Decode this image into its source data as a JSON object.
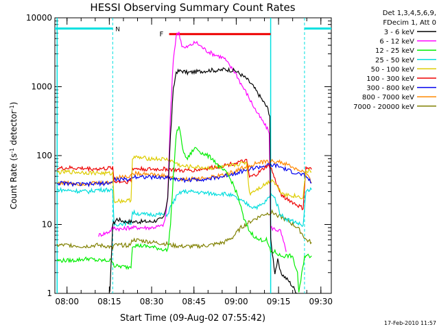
{
  "chart_data": {
    "type": "line",
    "title": "HESSI Observing Summary Count Rates",
    "xlabel": "Start Time (09-Aug-02 07:55:42)",
    "ylabel_parts": [
      "Count Rate (s",
      "-1",
      " detector",
      "-1",
      ")"
    ],
    "ylabel": "Count Rate (s-1 detector-1)",
    "y_scale": "log",
    "ylim": [
      1,
      10000
    ],
    "y_ticks": [
      1,
      10,
      100,
      1000,
      10000
    ],
    "y_tick_labels": [
      "1",
      "10",
      "100",
      "1000",
      "10000"
    ],
    "x_unit": "minutes after 07:55:42",
    "xlim": [
      0,
      98
    ],
    "x_tick_positions": [
      4.3,
      19.3,
      34.3,
      49.3,
      64.3,
      79.3,
      94.3
    ],
    "x_tick_labels": [
      "08:00",
      "08:15",
      "08:30",
      "08:45",
      "09:00",
      "09:15",
      "09:30"
    ],
    "legend_header": [
      "Det 1,3,4,5,6,9,",
      "FDecim 1, Att 0"
    ],
    "legend_position": "right-outside",
    "footer_date": "17-Feb-2010 11:57",
    "markers": {
      "night": {
        "label": "N",
        "color": "#00e0e0",
        "segments": [
          [
            0,
            20.5
          ],
          [
            88.5,
            98
          ]
        ],
        "level": 7000,
        "dashed_lines": [
          20.5,
          88.5
        ]
      },
      "flare": {
        "label": "F",
        "color": "#ee0000",
        "segment": [
          40.5,
          76.5
        ],
        "level": 5800
      },
      "saa_lines": [
        {
          "x": 0.8,
          "color": "#00e0e0"
        },
        {
          "x": 76.5,
          "color": "#00e0e0"
        }
      ]
    },
    "series": [
      {
        "name": "3 - 6 keV",
        "color": "#000000",
        "width": 1.2,
        "points": [
          [
            19.5,
            1
          ],
          [
            20.5,
            10
          ],
          [
            22,
            12
          ],
          [
            25,
            11
          ],
          [
            30,
            11
          ],
          [
            34,
            11
          ],
          [
            38,
            12
          ],
          [
            39,
            14
          ],
          [
            40,
            25
          ],
          [
            41,
            200
          ],
          [
            42,
            900
          ],
          [
            43,
            1650
          ],
          [
            45,
            1700
          ],
          [
            47,
            1600
          ],
          [
            50,
            1650
          ],
          [
            53,
            1700
          ],
          [
            56,
            1750
          ],
          [
            58,
            1700
          ],
          [
            60,
            1800
          ],
          [
            62,
            1750
          ],
          [
            64,
            1700
          ],
          [
            66,
            1500
          ],
          [
            68,
            1300
          ],
          [
            70,
            1050
          ],
          [
            72,
            800
          ],
          [
            74,
            600
          ],
          [
            75.5,
            480
          ],
          [
            76.2,
            380
          ],
          [
            76.5,
            6
          ],
          [
            78,
            2
          ],
          [
            79,
            3
          ],
          [
            80,
            2
          ],
          [
            83,
            1.5
          ],
          [
            86,
            1
          ]
        ]
      },
      {
        "name": "6 - 12 keV",
        "color": "#ff00ff",
        "width": 1.2,
        "points": [
          [
            15.5,
            7
          ],
          [
            18,
            7.5
          ],
          [
            19.5,
            8
          ],
          [
            20.5,
            9
          ],
          [
            24,
            8.5
          ],
          [
            26,
            9
          ],
          [
            30,
            9
          ],
          [
            34,
            9
          ],
          [
            38,
            9.5
          ],
          [
            39,
            11
          ],
          [
            40,
            25
          ],
          [
            41,
            400
          ],
          [
            42,
            2500
          ],
          [
            43,
            5500
          ],
          [
            44,
            6200
          ],
          [
            45,
            4000
          ],
          [
            46,
            3600
          ],
          [
            48,
            4000
          ],
          [
            50,
            4400
          ],
          [
            52,
            3800
          ],
          [
            54,
            3300
          ],
          [
            56,
            3000
          ],
          [
            58,
            2800
          ],
          [
            60,
            2600
          ],
          [
            62,
            2000
          ],
          [
            64,
            1600
          ],
          [
            66,
            1100
          ],
          [
            68,
            800
          ],
          [
            70,
            560
          ],
          [
            72,
            400
          ],
          [
            74,
            300
          ],
          [
            76,
            220
          ],
          [
            76.5,
            9
          ],
          [
            80,
            8
          ],
          [
            82,
            4
          ]
        ]
      },
      {
        "name": "12 - 25 keV",
        "color": "#00ee00",
        "width": 1.2,
        "points": [
          [
            0.8,
            3
          ],
          [
            6,
            3
          ],
          [
            12,
            3.2
          ],
          [
            15,
            3
          ],
          [
            18,
            3
          ],
          [
            20.5,
            3
          ],
          [
            21,
            2.5
          ],
          [
            26,
            2.4
          ],
          [
            27,
            2.5
          ],
          [
            27.5,
            5
          ],
          [
            33,
            4.8
          ],
          [
            37,
            4.5
          ],
          [
            40,
            4.2
          ],
          [
            41,
            10
          ],
          [
            42,
            50
          ],
          [
            43,
            200
          ],
          [
            44,
            270
          ],
          [
            45,
            150
          ],
          [
            46,
            100
          ],
          [
            47,
            90
          ],
          [
            49,
            120
          ],
          [
            50,
            130
          ],
          [
            52,
            110
          ],
          [
            54,
            100
          ],
          [
            56,
            90
          ],
          [
            58,
            70
          ],
          [
            61,
            55
          ],
          [
            63,
            40
          ],
          [
            65,
            25
          ],
          [
            67,
            12
          ],
          [
            69,
            8
          ],
          [
            72,
            6
          ],
          [
            75,
            6
          ],
          [
            76.5,
            4
          ],
          [
            78,
            4
          ],
          [
            80,
            3.5
          ],
          [
            84,
            3.5
          ],
          [
            86,
            2
          ],
          [
            86.5,
            1
          ],
          [
            88.5,
            3.5
          ],
          [
            91,
            3.5
          ]
        ]
      },
      {
        "name": "25 - 50 keV",
        "color": "#00dddd",
        "width": 1.2,
        "points": [
          [
            0.8,
            32
          ],
          [
            6,
            31
          ],
          [
            12,
            30
          ],
          [
            15,
            32
          ],
          [
            19,
            32
          ],
          [
            20.5,
            30
          ],
          [
            21,
            10
          ],
          [
            25,
            10.5
          ],
          [
            27,
            10.5
          ],
          [
            27.5,
            15
          ],
          [
            31,
            14
          ],
          [
            35,
            14
          ],
          [
            39,
            14
          ],
          [
            40,
            14
          ],
          [
            41,
            18
          ],
          [
            43,
            25
          ],
          [
            45,
            30
          ],
          [
            48,
            30
          ],
          [
            52,
            29
          ],
          [
            56,
            28
          ],
          [
            60,
            28
          ],
          [
            63,
            26
          ],
          [
            66,
            22
          ],
          [
            68,
            20
          ],
          [
            70,
            18
          ],
          [
            72,
            18
          ],
          [
            74,
            20
          ],
          [
            76,
            25
          ],
          [
            77,
            28
          ],
          [
            78,
            24
          ],
          [
            80,
            14
          ],
          [
            82,
            12
          ],
          [
            85,
            11
          ],
          [
            87,
            10
          ],
          [
            88,
            9.5
          ],
          [
            89,
            30
          ],
          [
            91,
            32
          ]
        ]
      },
      {
        "name": "50 - 100 keV",
        "color": "#ddcc00",
        "width": 1.2,
        "points": [
          [
            0.8,
            57
          ],
          [
            5,
            58
          ],
          [
            10,
            57
          ],
          [
            15,
            56
          ],
          [
            19,
            55
          ],
          [
            20.5,
            55
          ],
          [
            21,
            22
          ],
          [
            26,
            22
          ],
          [
            27,
            23
          ],
          [
            27.5,
            95
          ],
          [
            31,
            92
          ],
          [
            35,
            90
          ],
          [
            40,
            88
          ],
          [
            41,
            85
          ],
          [
            45,
            70
          ],
          [
            50,
            68
          ],
          [
            55,
            66
          ],
          [
            60,
            68
          ],
          [
            65,
            75
          ],
          [
            68,
            80
          ],
          [
            69,
            28
          ],
          [
            70,
            30
          ],
          [
            73,
            35
          ],
          [
            76,
            42
          ],
          [
            77,
            45
          ],
          [
            78,
            40
          ],
          [
            80,
            30
          ],
          [
            82,
            27
          ],
          [
            85,
            26
          ],
          [
            87,
            25
          ],
          [
            88,
            25
          ],
          [
            89,
            60
          ],
          [
            91,
            58
          ]
        ]
      },
      {
        "name": "100 - 300 keV",
        "color": "#ee0000",
        "width": 1.2,
        "points": [
          [
            0.8,
            65
          ],
          [
            5,
            66
          ],
          [
            10,
            65
          ],
          [
            15,
            64
          ],
          [
            19,
            65
          ],
          [
            20.5,
            68
          ],
          [
            21,
            42
          ],
          [
            26,
            42
          ],
          [
            27,
            43
          ],
          [
            27.5,
            65
          ],
          [
            31,
            64
          ],
          [
            35,
            63
          ],
          [
            40,
            64
          ],
          [
            41,
            63
          ],
          [
            45,
            60
          ],
          [
            50,
            62
          ],
          [
            55,
            66
          ],
          [
            60,
            72
          ],
          [
            65,
            80
          ],
          [
            68,
            83
          ],
          [
            69,
            48
          ],
          [
            70,
            50
          ],
          [
            72,
            55
          ],
          [
            75,
            70
          ],
          [
            76.5,
            68
          ],
          [
            78,
            45
          ],
          [
            80,
            28
          ],
          [
            82,
            24
          ],
          [
            85,
            20
          ],
          [
            87,
            18
          ],
          [
            88,
            17
          ],
          [
            89,
            66
          ],
          [
            91,
            63
          ]
        ]
      },
      {
        "name": "300 - 800 keV",
        "color": "#0000ee",
        "width": 1.2,
        "points": [
          [
            0.8,
            40
          ],
          [
            5,
            39
          ],
          [
            10,
            38
          ],
          [
            15,
            39
          ],
          [
            19,
            40
          ],
          [
            20.5,
            41
          ],
          [
            21,
            45
          ],
          [
            26,
            45
          ],
          [
            27,
            46
          ],
          [
            27.5,
            50
          ],
          [
            32,
            49
          ],
          [
            36,
            48
          ],
          [
            40,
            48
          ],
          [
            41,
            47
          ],
          [
            45,
            44
          ],
          [
            50,
            45
          ],
          [
            55,
            46
          ],
          [
            60,
            50
          ],
          [
            64,
            56
          ],
          [
            68,
            62
          ],
          [
            70,
            65
          ],
          [
            74,
            70
          ],
          [
            76,
            72
          ],
          [
            78,
            72
          ],
          [
            80,
            68
          ],
          [
            83,
            60
          ],
          [
            86,
            55
          ],
          [
            88,
            52
          ],
          [
            89,
            50
          ],
          [
            91,
            40
          ]
        ]
      },
      {
        "name": "800 - 7000 keV",
        "color": "#ff8800",
        "width": 1.2,
        "points": [
          [
            0.8,
            40
          ],
          [
            5,
            40
          ],
          [
            10,
            39
          ],
          [
            15,
            40
          ],
          [
            19,
            40
          ],
          [
            20.5,
            42
          ],
          [
            21,
            48
          ],
          [
            26,
            50
          ],
          [
            28,
            55
          ],
          [
            32,
            55
          ],
          [
            36,
            52
          ],
          [
            40,
            50
          ],
          [
            41,
            48
          ],
          [
            45,
            45
          ],
          [
            50,
            46
          ],
          [
            55,
            48
          ],
          [
            60,
            52
          ],
          [
            64,
            60
          ],
          [
            68,
            70
          ],
          [
            72,
            78
          ],
          [
            76,
            82
          ],
          [
            79,
            82
          ],
          [
            82,
            75
          ],
          [
            85,
            65
          ],
          [
            88,
            58
          ],
          [
            89,
            55
          ],
          [
            91,
            40
          ]
        ]
      },
      {
        "name": "7000 - 20000 keV",
        "color": "#808000",
        "width": 1.2,
        "points": [
          [
            0.8,
            5
          ],
          [
            6,
            5
          ],
          [
            10,
            4.8
          ],
          [
            15,
            5
          ],
          [
            19,
            4.8
          ],
          [
            20.5,
            4.5
          ],
          [
            21,
            5
          ],
          [
            26,
            5
          ],
          [
            27,
            5.2
          ],
          [
            27.5,
            6
          ],
          [
            31,
            5.8
          ],
          [
            35,
            5.5
          ],
          [
            40,
            5.2
          ],
          [
            41,
            5
          ],
          [
            45,
            4.8
          ],
          [
            50,
            4.8
          ],
          [
            55,
            5
          ],
          [
            60,
            5.5
          ],
          [
            63,
            6.5
          ],
          [
            66,
            9
          ],
          [
            70,
            11.5
          ],
          [
            74,
            14
          ],
          [
            77,
            15
          ],
          [
            80,
            13
          ],
          [
            83,
            11
          ],
          [
            86,
            9
          ],
          [
            88,
            7
          ],
          [
            89,
            6
          ],
          [
            91,
            5.5
          ]
        ]
      }
    ]
  }
}
